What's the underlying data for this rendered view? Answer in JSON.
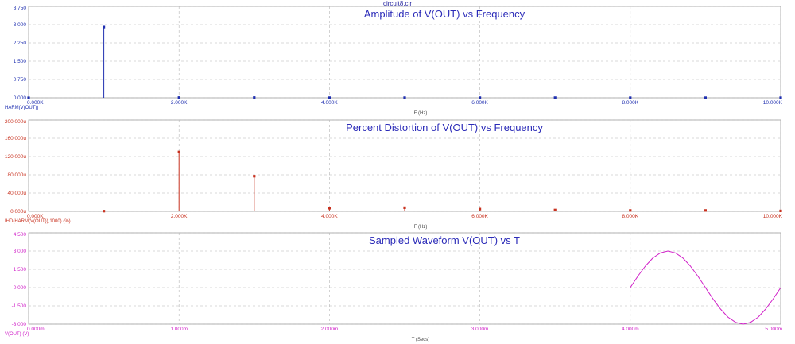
{
  "window": {
    "file_title": "circuit8.cir"
  },
  "chart_data": [
    {
      "type": "stem",
      "title": "Amplitude of V(OUT) vs Frequency",
      "xlabel": "F (Hz)",
      "trace_label": "HARM(V(OUT))",
      "color": "#1f2fb0",
      "xlim": [
        0,
        10000
      ],
      "ylim": [
        0,
        3.75
      ],
      "xticks": [
        0,
        2000,
        4000,
        6000,
        8000,
        10000
      ],
      "xtick_labels": [
        "0.000K",
        "2.000K",
        "4.000K",
        "6.000K",
        "8.000K",
        "10.000K"
      ],
      "yticks": [
        0,
        0.75,
        1.5,
        2.25,
        3.0,
        3.75
      ],
      "ytick_labels": [
        "0.000",
        "0.750",
        "1.500",
        "2.250",
        "3.000",
        "3.750"
      ],
      "x": [
        0,
        1000,
        2000,
        3000,
        4000,
        5000,
        6000,
        7000,
        8000,
        9000,
        10000
      ],
      "y": [
        0,
        2.9,
        0.01,
        0.01,
        0.005,
        0.005,
        0.005,
        0.005,
        0.003,
        0.003,
        0.003
      ]
    },
    {
      "type": "stem",
      "title": "Percent Distortion of V(OUT) vs Frequency",
      "xlabel": "F (Hz)",
      "trace_label": "IHD(HARM(V(OUT)),1000) (%)",
      "color": "#c8311f",
      "xlim": [
        0,
        10000
      ],
      "ylim": [
        0,
        200
      ],
      "xticks": [
        0,
        2000,
        4000,
        6000,
        8000,
        10000
      ],
      "xtick_labels": [
        "0.000K",
        "2.000K",
        "4.000K",
        "6.000K",
        "8.000K",
        "10.000K"
      ],
      "yticks": [
        0,
        40,
        80,
        120,
        160,
        200
      ],
      "ytick_labels": [
        "0.000u",
        "40.000u",
        "80.000u",
        "120.000u",
        "160.000u",
        "200.000u"
      ],
      "x": [
        1000,
        2000,
        3000,
        4000,
        5000,
        6000,
        7000,
        8000,
        9000,
        10000
      ],
      "y": [
        0.5,
        130,
        77,
        7,
        8,
        5,
        3,
        2,
        2,
        1
      ]
    },
    {
      "type": "line",
      "title": "Sampled Waveform  V(OUT) vs T",
      "xlabel": "T (Secs)",
      "trace_label": "V(OUT) (V)",
      "color": "#d020c8",
      "xlim": [
        0,
        5
      ],
      "ylim": [
        -3.0,
        4.5
      ],
      "xticks": [
        0,
        1,
        2,
        3,
        4,
        5
      ],
      "xtick_labels": [
        "0.000m",
        "1.000m",
        "2.000m",
        "3.000m",
        "4.000m",
        "5.000m"
      ],
      "yticks": [
        -3.0,
        -1.5,
        0,
        1.5,
        3.0,
        4.5
      ],
      "ytick_labels": [
        "-3.000",
        "-1.500",
        "0.000",
        "1.500",
        "3.000",
        "4.500"
      ],
      "x": [
        4.0,
        4.05,
        4.1,
        4.15,
        4.2,
        4.25,
        4.3,
        4.35,
        4.4,
        4.45,
        4.5,
        4.55,
        4.6,
        4.65,
        4.7,
        4.75,
        4.8,
        4.85,
        4.9,
        4.95,
        5.0
      ],
      "y": [
        0,
        0.93,
        1.76,
        2.43,
        2.85,
        3.0,
        2.85,
        2.43,
        1.76,
        0.93,
        0,
        -0.93,
        -1.76,
        -2.43,
        -2.85,
        -3.0,
        -2.85,
        -2.43,
        -1.76,
        -0.93,
        0
      ]
    }
  ]
}
